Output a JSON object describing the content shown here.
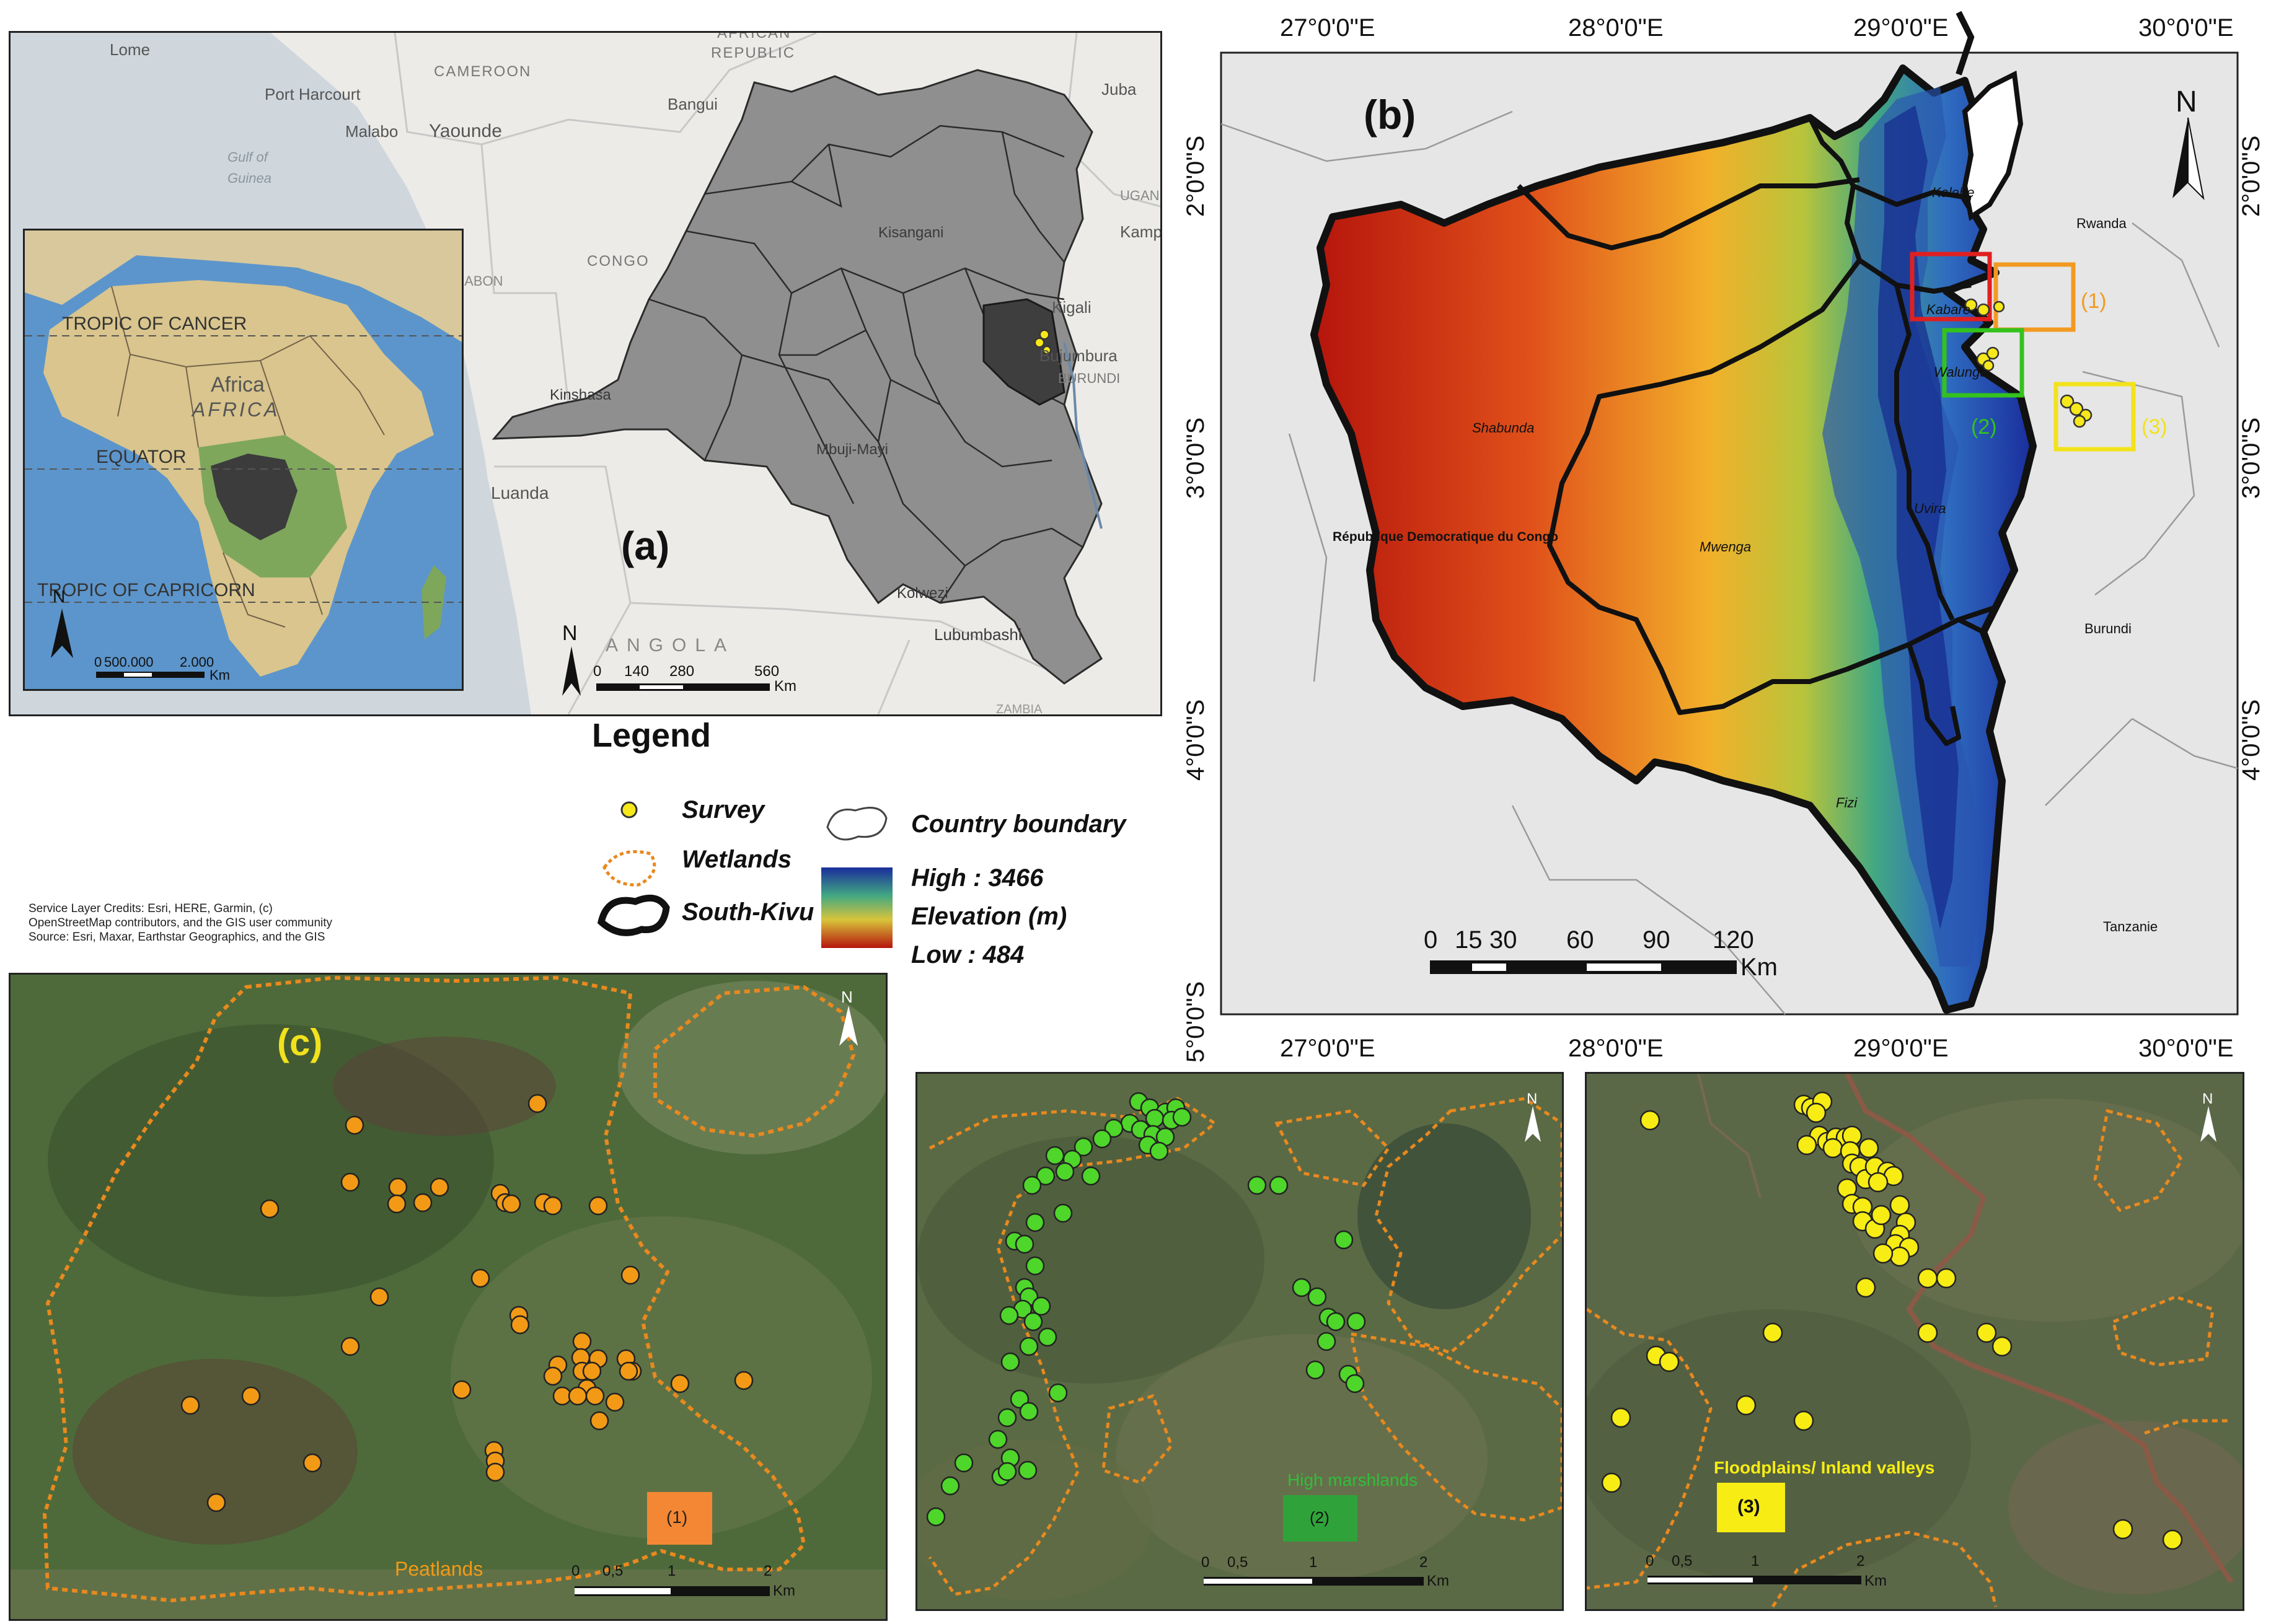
{
  "panel_a": {
    "label": "(a)",
    "places": [
      "Lome",
      "Port Harcourt",
      "Malabo",
      "Yaounde",
      "CAMEROON",
      "Gulf of",
      "Guinea",
      "CONGO",
      "AFRICAN",
      "REPUBLIC",
      "Bangui",
      "Juba",
      "Kisangani",
      "Kampala",
      "Kigali",
      "Bujumbura",
      "BURUNDI",
      "Kinshasa",
      "Mbuji-Mayi",
      "Luanda",
      "Kolwezi",
      "Lubumbashi",
      "ANGOLA",
      "ZAMBIA",
      "UGANDA",
      "GABON"
    ],
    "scale": {
      "ticks": [
        "0",
        "140",
        "280",
        "560"
      ],
      "unit": "Km"
    },
    "north": "N",
    "inset": {
      "labels": [
        "TROPIC OF CANCER",
        "Africa",
        "AFRICA",
        "EQUATOR",
        "TROPIC OF CAPRICORN"
      ],
      "scale": {
        "ticks": [
          "0",
          "500.000",
          "2.000"
        ],
        "unit": "Km"
      },
      "north": "N"
    }
  },
  "panel_b": {
    "label": "(b)",
    "top_ticks": [
      "27°0'0\"E",
      "28°0'0\"E",
      "29°0'0\"E",
      "30°0'0\"E"
    ],
    "bottom_ticks": [
      "27°0'0\"E",
      "28°0'0\"E",
      "29°0'0\"E",
      "30°0'0\"E"
    ],
    "left_ticks": [
      "2°0'0\"S",
      "3°0'0\"S",
      "4°0'0\"S",
      "5°0'0\"S"
    ],
    "right_ticks": [
      "2°0'0\"S",
      "3°0'0\"S",
      "4°0'0\"S"
    ],
    "places": [
      "Kalehe",
      "Kabare",
      "Walungu",
      "Shabunda",
      "République Democratique du Congo",
      "Mwenga",
      "Uvira",
      "Fizi",
      "Rwanda",
      "Burundi",
      "Tanzanie"
    ],
    "boxes": [
      {
        "label": "",
        "color": "#e02020"
      },
      {
        "label": "(1)",
        "color": "#f29a22"
      },
      {
        "label": "(2)",
        "color": "#34c21c"
      },
      {
        "label": "(3)",
        "color": "#f2e21c"
      }
    ],
    "scale": {
      "ticks": [
        "0",
        "15",
        "30",
        "60",
        "90",
        "120"
      ],
      "unit": "Km"
    },
    "north": "N"
  },
  "legend": {
    "title": "Legend",
    "items": {
      "survey": "Survey",
      "wetlands": "Wetlands",
      "south_kivu": "South-Kivu",
      "country_boundary": "Country boundary",
      "high": "High : 3466",
      "elevation": "Elevation (m)",
      "low": "Low : 484"
    }
  },
  "credits": {
    "line1": "Service Layer Credits: Esri, HERE, Garmin, (c)",
    "line2": "OpenStreetMap contributors, and the GIS user community",
    "line3": "Source: Esri, Maxar, Earthstar Geographics, and the GIS"
  },
  "panel_c1": {
    "label": "(c)",
    "box_label": "(1)",
    "type_label": "Peatlands",
    "scale": {
      "ticks": [
        "0",
        "0,5",
        "1",
        "2"
      ],
      "unit": "Km"
    },
    "north": "N",
    "point_color": "#f29a16"
  },
  "panel_c2": {
    "box_label": "(2)",
    "type_label": "High marshlands",
    "scale": {
      "ticks": [
        "0",
        "0,5",
        "1",
        "2"
      ],
      "unit": "Km"
    },
    "north": "N",
    "point_color": "#4ed62a"
  },
  "panel_c3": {
    "box_label": "(3)",
    "type_label": "Floodplains/ Inland valleys",
    "scale": {
      "ticks": [
        "0",
        "0,5",
        "1",
        "2"
      ],
      "unit": "Km"
    },
    "north": "N",
    "point_color": "#f7ec14"
  },
  "colors": {
    "wetland_outline": "#e8891e",
    "boundary": "#111111",
    "elev_high": "#1a2d9c",
    "elev_low": "#b5150c"
  }
}
